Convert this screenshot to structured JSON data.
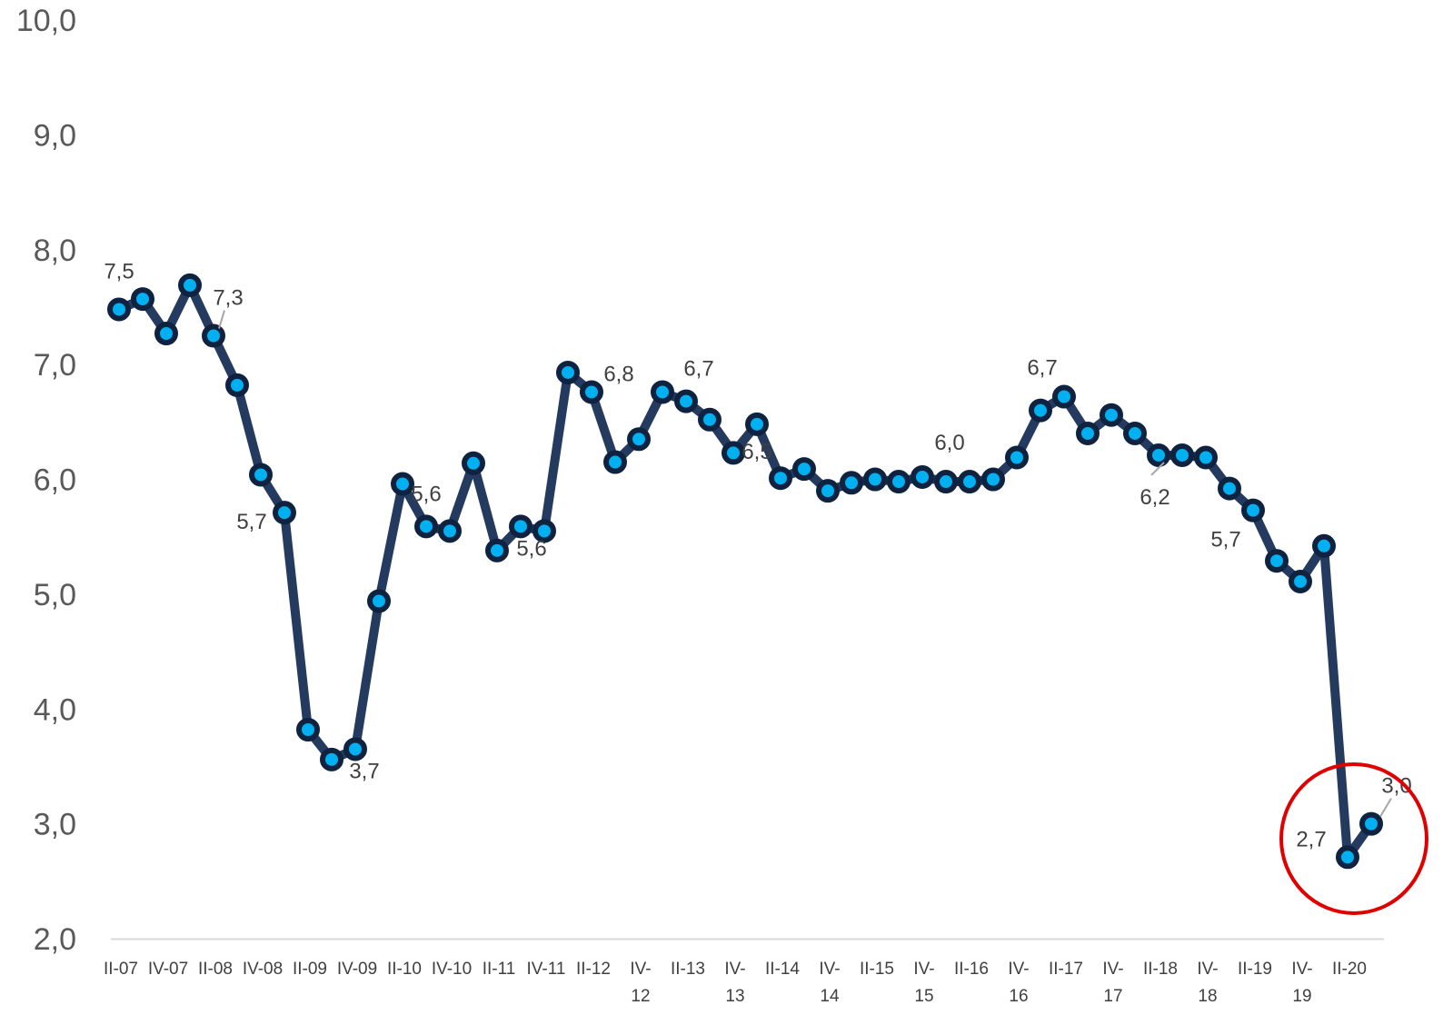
{
  "chart_data": {
    "type": "line",
    "title": "",
    "xlabel": "",
    "ylabel": "",
    "ylim": [
      2.0,
      10.0
    ],
    "yticks": [
      "2,0",
      "3,0",
      "4,0",
      "5,0",
      "6,0",
      "7,0",
      "8,0",
      "9,0",
      "10,0"
    ],
    "grid": false,
    "legend": "none",
    "colors": {
      "line": "#243A5E",
      "marker_fill": "#00B0F0",
      "highlight_circle": "#E00000",
      "axis": "#D9D9D9",
      "leader": "#A6A6A6"
    },
    "x_tick_labels": [
      [
        "II-07"
      ],
      [
        "IV-07"
      ],
      [
        "II-08"
      ],
      [
        "IV-08"
      ],
      [
        "II-09"
      ],
      [
        "IV-09"
      ],
      [
        "II-10"
      ],
      [
        "IV-10"
      ],
      [
        "II-11"
      ],
      [
        "IV-11"
      ],
      [
        "II-12"
      ],
      [
        "IV-",
        "12"
      ],
      [
        "II-13"
      ],
      [
        "IV-",
        "13"
      ],
      [
        "II-14"
      ],
      [
        "IV-",
        "14"
      ],
      [
        "II-15"
      ],
      [
        "IV-",
        "15"
      ],
      [
        "II-16"
      ],
      [
        "IV-",
        "16"
      ],
      [
        "II-17"
      ],
      [
        "IV-",
        "17"
      ],
      [
        "II-18"
      ],
      [
        "IV-",
        "18"
      ],
      [
        "II-19"
      ],
      [
        "IV-",
        "19"
      ],
      [
        "II-20"
      ]
    ],
    "series": [
      {
        "values": [
          7.48,
          7.57,
          7.27,
          7.69,
          7.25,
          6.82,
          6.04,
          5.71,
          3.82,
          3.56,
          3.65,
          4.94,
          5.96,
          5.59,
          5.55,
          6.14,
          5.38,
          5.59,
          5.55,
          6.93,
          6.76,
          6.15,
          6.35,
          6.76,
          6.68,
          6.52,
          6.23,
          6.48,
          6.01,
          6.09,
          5.9,
          5.97,
          6.0,
          5.98,
          6.02,
          5.98,
          5.98,
          6.0,
          6.19,
          6.6,
          6.72,
          6.4,
          6.56,
          6.4,
          6.21,
          6.21,
          6.19,
          5.92,
          5.73,
          5.29,
          5.11,
          5.42,
          2.71,
          3.0
        ]
      }
    ],
    "data_labels": [
      {
        "index": 0,
        "text": "7,5"
      },
      {
        "index": 4,
        "text": "7,3"
      },
      {
        "index": 7,
        "text": "5,7"
      },
      {
        "index": 10,
        "text": "3,7"
      },
      {
        "index": 13,
        "text": "5,6"
      },
      {
        "index": 17,
        "text": "5,6"
      },
      {
        "index": 20,
        "text": "6,8"
      },
      {
        "index": 24,
        "text": "6,7"
      },
      {
        "index": 27,
        "text": "6,5"
      },
      {
        "index": 34,
        "text": "6,0"
      },
      {
        "index": 40,
        "text": "6,7"
      },
      {
        "index": 44,
        "text": "6,2"
      },
      {
        "index": 48,
        "text": "5,7"
      },
      {
        "index": 52,
        "text": "2,7"
      },
      {
        "index": 53,
        "text": "3,0"
      }
    ],
    "highlight": {
      "indices": [
        52,
        53
      ],
      "shape": "circle"
    }
  }
}
